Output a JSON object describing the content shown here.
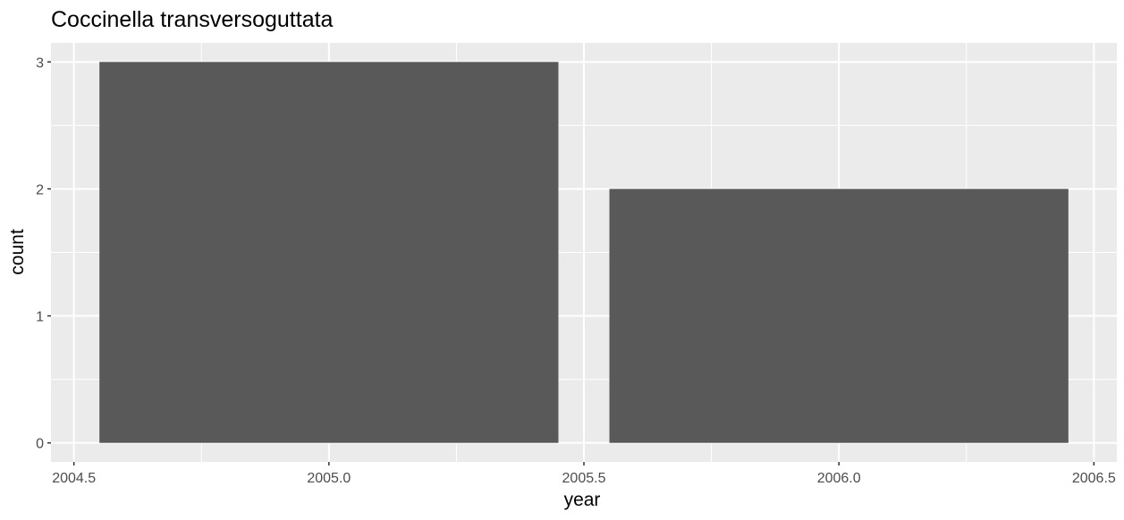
{
  "chart_data": {
    "type": "bar",
    "title": "Coccinella transversoguttata",
    "xlabel": "year",
    "ylabel": "count",
    "x": [
      2005,
      2006
    ],
    "values": [
      3,
      2
    ],
    "bar_width": 0.9,
    "xlim": [
      2004.5,
      2006.5
    ],
    "ylim": [
      0,
      3
    ],
    "x_ticks": [
      2004.5,
      2005.0,
      2005.5,
      2006.0,
      2006.5
    ],
    "x_tick_labels": [
      "2004.5",
      "2005.0",
      "2005.5",
      "2006.0",
      "2006.5"
    ],
    "y_ticks": [
      0,
      1,
      2,
      3
    ],
    "y_tick_labels": [
      "0",
      "1",
      "2",
      "3"
    ],
    "grid": true,
    "legend": "none",
    "colors": {
      "bar": "#595959",
      "panel": "#ebebeb",
      "grid": "#ffffff",
      "axis_text": "#4d4d4d",
      "tick": "#333333"
    }
  }
}
